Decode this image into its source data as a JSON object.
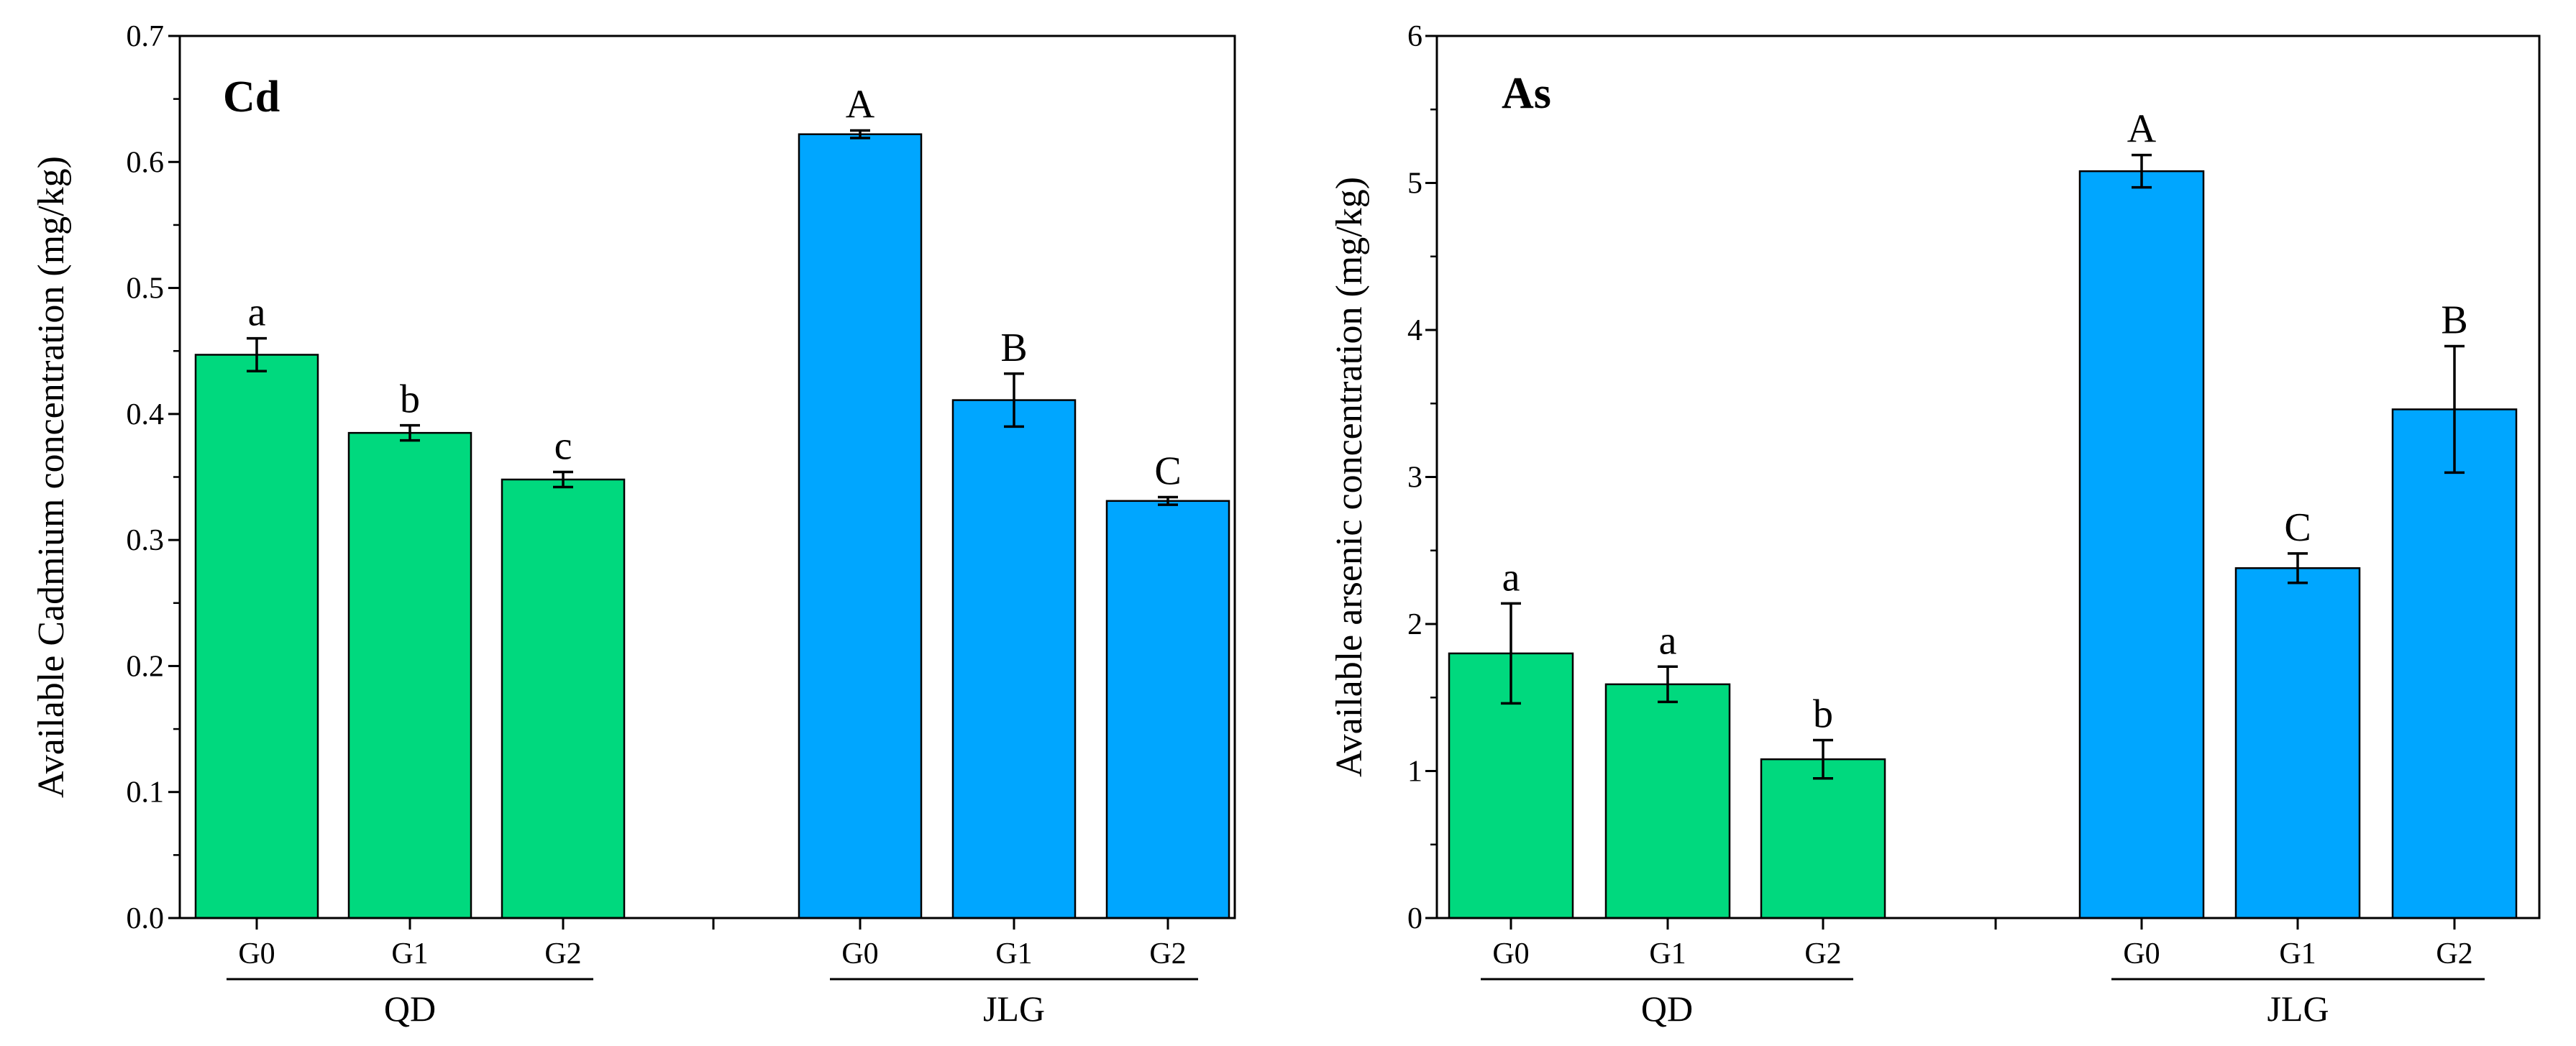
{
  "colors": {
    "QD": "#00D97E",
    "JLG": "#00A6FF"
  },
  "chart_data": [
    {
      "type": "bar",
      "title": "Cd",
      "ylabel": "Available Cadmium concentration (mg/kg)",
      "ylim": [
        0,
        0.7
      ],
      "yticks": [
        0.0,
        0.1,
        0.2,
        0.3,
        0.4,
        0.5,
        0.6,
        0.7
      ],
      "yticklabels": [
        "0.0",
        "0.1",
        "0.2",
        "0.3",
        "0.4",
        "0.5",
        "0.6",
        "0.7"
      ],
      "groups": [
        {
          "name": "QD",
          "categories": [
            "G0",
            "G1",
            "G2"
          ],
          "values": [
            0.447,
            0.385,
            0.348
          ],
          "errors": [
            0.013,
            0.006,
            0.006
          ],
          "letters": [
            "a",
            "b",
            "c"
          ]
        },
        {
          "name": "JLG",
          "categories": [
            "G0",
            "G1",
            "G2"
          ],
          "values": [
            0.622,
            0.411,
            0.331
          ],
          "errors": [
            0.003,
            0.021,
            0.003
          ],
          "letters": [
            "A",
            "B",
            "C"
          ]
        }
      ]
    },
    {
      "type": "bar",
      "title": "As",
      "ylabel": "Available arsenic concentration (mg/kg)",
      "ylim": [
        0,
        6
      ],
      "yticks": [
        0,
        1,
        2,
        3,
        4,
        5,
        6
      ],
      "yticklabels": [
        "0",
        "1",
        "2",
        "3",
        "4",
        "5",
        "6"
      ],
      "groups": [
        {
          "name": "QD",
          "categories": [
            "G0",
            "G1",
            "G2"
          ],
          "values": [
            1.8,
            1.59,
            1.08
          ],
          "errors": [
            0.34,
            0.12,
            0.13
          ],
          "letters": [
            "a",
            "a",
            "b"
          ]
        },
        {
          "name": "JLG",
          "categories": [
            "G0",
            "G1",
            "G2"
          ],
          "values": [
            5.08,
            2.38,
            3.46
          ],
          "errors": [
            0.11,
            0.1,
            0.43
          ],
          "letters": [
            "A",
            "C",
            "B"
          ]
        }
      ]
    }
  ]
}
